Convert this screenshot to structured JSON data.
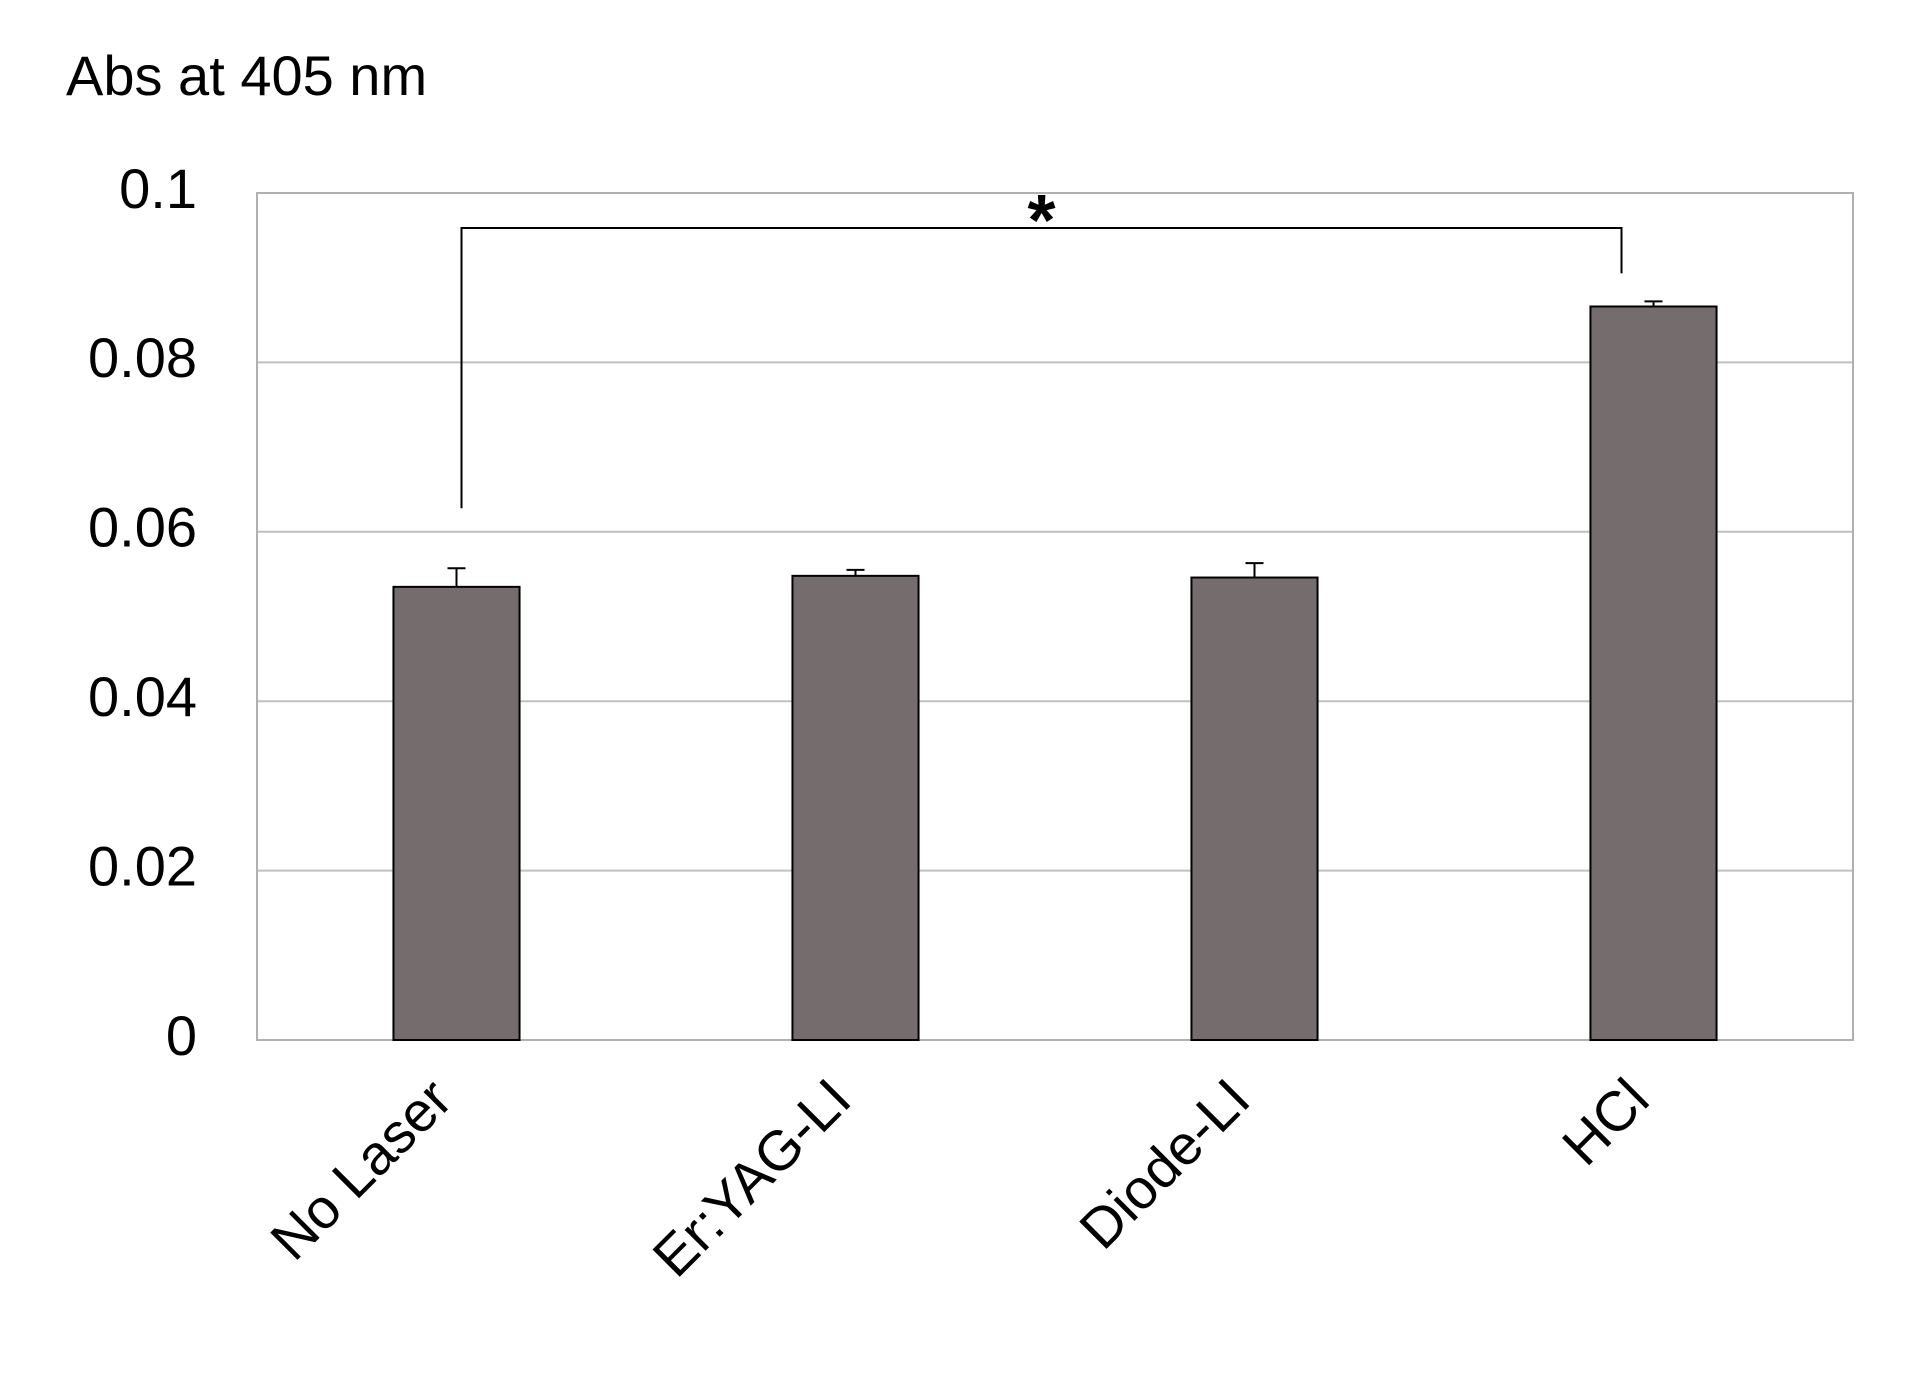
{
  "chart_data": {
    "type": "bar",
    "y_label": "Abs at 405 nm",
    "categories": [
      "No Laser",
      "Er:YAG-LI",
      "Diode-LI",
      "HCl"
    ],
    "values": [
      0.0535,
      0.0548,
      0.0546,
      0.0866
    ],
    "errors": [
      0.0022,
      0.0007,
      0.0017,
      0.0006
    ],
    "color": "#756d6d",
    "ylim": [
      0,
      0.1
    ],
    "yticks": [
      0,
      0.02,
      0.04,
      0.06,
      0.08,
      0.1
    ],
    "grid": true,
    "significance": {
      "label": "*",
      "between": [
        "No Laser",
        "HCl"
      ]
    }
  }
}
